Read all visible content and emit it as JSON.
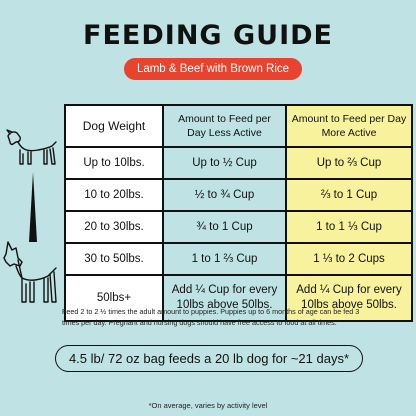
{
  "title": "FEEDING GUIDE",
  "subtitle": "Lamb & Beef with Brown Rice",
  "table": {
    "headers": [
      "Dog Weight",
      "Amount to Feed per Day Less Active",
      "Amount to Feed per Day More Active"
    ],
    "rows": [
      [
        "Up to 10lbs.",
        "Up to ½ Cup",
        "Up to ⅔ Cup"
      ],
      [
        "10 to 20lbs.",
        "½ to ¾ Cup",
        "⅔ to 1 Cup"
      ],
      [
        "20 to 30lbs.",
        "¾ to 1 Cup",
        "1 to 1 ⅓ Cup"
      ],
      [
        "30 to 50lbs.",
        "1 to 1 ⅔ Cup",
        "1 ⅓ to 2 Cups"
      ],
      [
        "50lbs+",
        "Add ¼ Cup for every 10lbs above 50lbs.",
        "Add ¼ Cup for every 10lbs above 50lbs."
      ]
    ],
    "colors": {
      "less_active": "#bfe3e4",
      "more_active": "#f8f29c",
      "weight": "#ffffff"
    }
  },
  "note": "Feed 2 to 2 ½ times the adult amount to puppies. Puppies up to 6 months of age can be fed 3 times per day. Pregnant and nursing dogs should have free access to food at all times.",
  "bag_statement": "4.5 lb/ 72 oz bag feeds a 20 lb dog for ~21 days*",
  "footnote": "*On average, varies by activity level",
  "icons": [
    "small-dog-icon",
    "large-dog-icon"
  ],
  "colors": {
    "background": "#bfe3e4",
    "accent": "#e8432e"
  }
}
